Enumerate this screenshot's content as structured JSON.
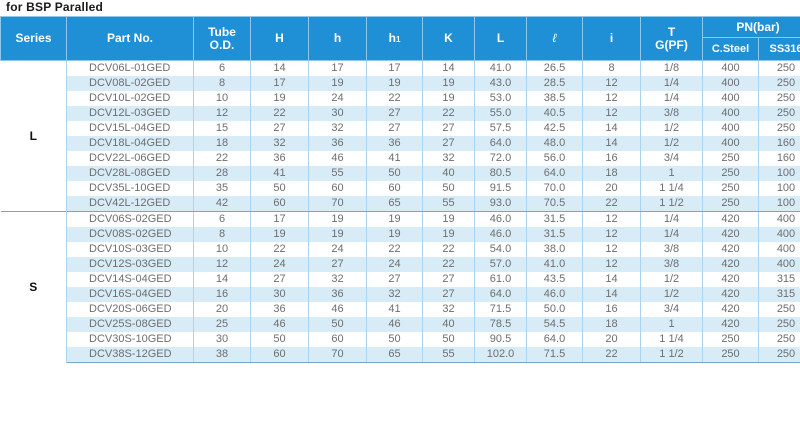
{
  "caption": "for BSP Paralled",
  "headers": {
    "series": "Series",
    "part_no": "Part No.",
    "tube_od_line1": "Tube",
    "tube_od_line2": "O.D.",
    "H": "H",
    "h": "h",
    "h1_base": "h",
    "h1_sub": "1",
    "K": "K",
    "L": "L",
    "ell": "ℓ",
    "i": "i",
    "T_line1": "T",
    "T_line2": "G(PF)",
    "pn": "PN(bar)",
    "csteel": "C.Steel",
    "ss316": "SS316"
  },
  "groups": [
    {
      "series": "L",
      "rows": [
        {
          "part": "DCV06L-01GED",
          "od": "6",
          "H": "14",
          "h": "17",
          "h1": "17",
          "K": "14",
          "L": "41.0",
          "ell": "26.5",
          "i": "8",
          "T": "1/8",
          "cs": "400",
          "ss": "250"
        },
        {
          "part": "DCV08L-02GED",
          "od": "8",
          "H": "17",
          "h": "19",
          "h1": "19",
          "K": "19",
          "L": "43.0",
          "ell": "28.5",
          "i": "12",
          "T": "1/4",
          "cs": "400",
          "ss": "250"
        },
        {
          "part": "DCV10L-02GED",
          "od": "10",
          "H": "19",
          "h": "24",
          "h1": "22",
          "K": "19",
          "L": "53.0",
          "ell": "38.5",
          "i": "12",
          "T": "1/4",
          "cs": "400",
          "ss": "250"
        },
        {
          "part": "DCV12L-03GED",
          "od": "12",
          "H": "22",
          "h": "30",
          "h1": "27",
          "K": "22",
          "L": "55.0",
          "ell": "40.5",
          "i": "12",
          "T": "3/8",
          "cs": "400",
          "ss": "250"
        },
        {
          "part": "DCV15L-04GED",
          "od": "15",
          "H": "27",
          "h": "32",
          "h1": "27",
          "K": "27",
          "L": "57.5",
          "ell": "42.5",
          "i": "14",
          "T": "1/2",
          "cs": "400",
          "ss": "250"
        },
        {
          "part": "DCV18L-04GED",
          "od": "18",
          "H": "32",
          "h": "36",
          "h1": "36",
          "K": "27",
          "L": "64.0",
          "ell": "48.0",
          "i": "14",
          "T": "1/2",
          "cs": "400",
          "ss": "160"
        },
        {
          "part": "DCV22L-06GED",
          "od": "22",
          "H": "36",
          "h": "46",
          "h1": "41",
          "K": "32",
          "L": "72.0",
          "ell": "56.0",
          "i": "16",
          "T": "3/4",
          "cs": "250",
          "ss": "160"
        },
        {
          "part": "DCV28L-08GED",
          "od": "28",
          "H": "41",
          "h": "55",
          "h1": "50",
          "K": "40",
          "L": "80.5",
          "ell": "64.0",
          "i": "18",
          "T": "1",
          "cs": "250",
          "ss": "100"
        },
        {
          "part": "DCV35L-10GED",
          "od": "35",
          "H": "50",
          "h": "60",
          "h1": "60",
          "K": "50",
          "L": "91.5",
          "ell": "70.0",
          "i": "20",
          "T": "1 1/4",
          "cs": "250",
          "ss": "100"
        },
        {
          "part": "DCV42L-12GED",
          "od": "42",
          "H": "60",
          "h": "70",
          "h1": "65",
          "K": "55",
          "L": "93.0",
          "ell": "70.5",
          "i": "22",
          "T": "1 1/2",
          "cs": "250",
          "ss": "100"
        }
      ]
    },
    {
      "series": "S",
      "rows": [
        {
          "part": "DCV06S-02GED",
          "od": "6",
          "H": "17",
          "h": "19",
          "h1": "19",
          "K": "19",
          "L": "46.0",
          "ell": "31.5",
          "i": "12",
          "T": "1/4",
          "cs": "420",
          "ss": "400"
        },
        {
          "part": "DCV08S-02GED",
          "od": "8",
          "H": "19",
          "h": "19",
          "h1": "19",
          "K": "19",
          "L": "46.0",
          "ell": "31.5",
          "i": "12",
          "T": "1/4",
          "cs": "420",
          "ss": "400"
        },
        {
          "part": "DCV10S-03GED",
          "od": "10",
          "H": "22",
          "h": "24",
          "h1": "22",
          "K": "22",
          "L": "54.0",
          "ell": "38.0",
          "i": "12",
          "T": "3/8",
          "cs": "420",
          "ss": "400"
        },
        {
          "part": "DCV12S-03GED",
          "od": "12",
          "H": "24",
          "h": "27",
          "h1": "24",
          "K": "22",
          "L": "57.0",
          "ell": "41.0",
          "i": "12",
          "T": "3/8",
          "cs": "420",
          "ss": "400"
        },
        {
          "part": "DCV14S-04GED",
          "od": "14",
          "H": "27",
          "h": "32",
          "h1": "27",
          "K": "27",
          "L": "61.0",
          "ell": "43.5",
          "i": "14",
          "T": "1/2",
          "cs": "420",
          "ss": "315"
        },
        {
          "part": "DCV16S-04GED",
          "od": "16",
          "H": "30",
          "h": "36",
          "h1": "32",
          "K": "27",
          "L": "64.0",
          "ell": "46.0",
          "i": "14",
          "T": "1/2",
          "cs": "420",
          "ss": "315"
        },
        {
          "part": "DCV20S-06GED",
          "od": "20",
          "H": "36",
          "h": "46",
          "h1": "41",
          "K": "32",
          "L": "71.5",
          "ell": "50.0",
          "i": "16",
          "T": "3/4",
          "cs": "420",
          "ss": "250"
        },
        {
          "part": "DCV25S-08GED",
          "od": "25",
          "H": "46",
          "h": "50",
          "h1": "46",
          "K": "40",
          "L": "78.5",
          "ell": "54.5",
          "i": "18",
          "T": "1",
          "cs": "420",
          "ss": "250"
        },
        {
          "part": "DCV30S-10GED",
          "od": "30",
          "H": "50",
          "h": "60",
          "h1": "50",
          "K": "50",
          "L": "90.5",
          "ell": "64.0",
          "i": "20",
          "T": "1 1/4",
          "cs": "250",
          "ss": "250"
        },
        {
          "part": "DCV38S-12GED",
          "od": "38",
          "H": "60",
          "h": "70",
          "h1": "65",
          "K": "55",
          "L": "102.0",
          "ell": "71.5",
          "i": "22",
          "T": "1 1/2",
          "cs": "250",
          "ss": "250"
        }
      ]
    }
  ]
}
